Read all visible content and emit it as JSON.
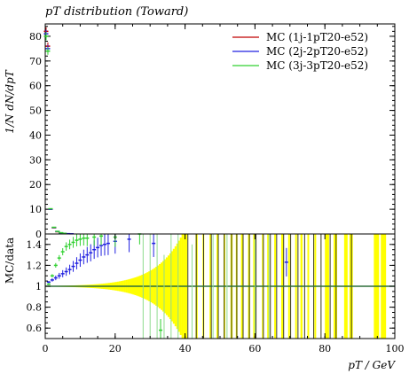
{
  "chart_data": {
    "type": "line",
    "title": "pT distribution (Toward)",
    "xlabel": "pT / GeV",
    "ylabel": "1/N dN/dpT",
    "ratio_ylabel": "MC/data",
    "xlim": [
      0,
      100
    ],
    "ylim": [
      0,
      85
    ],
    "ratio_ylim": [
      0.5,
      1.5
    ],
    "x_ticks": [
      "0",
      "20",
      "40",
      "60",
      "80",
      "100"
    ],
    "y_ticks": [
      "0",
      "10",
      "20",
      "30",
      "40",
      "50",
      "60",
      "70",
      "80"
    ],
    "ratio_ticks": [
      "0.6",
      "0.8",
      "1",
      "1.2",
      "1.4"
    ],
    "legend_position": "top-right",
    "colors": {
      "s1": "#c00000",
      "s2": "#2020e0",
      "s3": "#30d030",
      "band": "#ffff00",
      "ref": "#2d6e3a"
    },
    "legend": [
      {
        "name": "MC (1j-1pT20-e52)",
        "color": "#c00000"
      },
      {
        "name": "MC (2j-2pT20-e52)",
        "color": "#2020e0"
      },
      {
        "name": "MC (3j-3pT20-e52)",
        "color": "#30d030"
      }
    ],
    "series": [
      {
        "name": "MC (1j-1pT20-e52)",
        "x": [
          0.25,
          0.75,
          1.5,
          2.5,
          3.5,
          4.5
        ],
        "y": [
          82,
          76,
          10,
          2.5,
          0.9,
          0.4
        ]
      },
      {
        "name": "MC (2j-2pT20-e52)",
        "x": [
          0.25,
          0.75,
          1.5,
          2.5,
          3.5,
          4.5,
          5.5,
          6.5,
          7.5
        ],
        "y": [
          81,
          75,
          10,
          2.6,
          1.0,
          0.45,
          0.22,
          0.12,
          0.07
        ]
      },
      {
        "name": "MC (3j-3pT20-e52)",
        "x": [
          0.25,
          0.75,
          1.5,
          2.5,
          3.5,
          4.5,
          5.5
        ],
        "y": [
          80,
          74,
          10.2,
          2.7,
          1.05,
          0.5,
          0.25
        ]
      }
    ],
    "ratio_series": [
      {
        "name": "MC (2j-2pT20-e52)",
        "x": [
          1,
          2,
          3,
          4,
          5,
          6,
          7,
          8,
          9,
          10,
          11,
          12,
          13,
          14,
          15,
          16,
          17,
          18,
          20,
          24,
          31,
          69
        ],
        "y": [
          1.04,
          1.06,
          1.08,
          1.1,
          1.12,
          1.14,
          1.16,
          1.19,
          1.22,
          1.25,
          1.28,
          1.3,
          1.32,
          1.35,
          1.37,
          1.39,
          1.4,
          1.41,
          1.43,
          1.45,
          1.41,
          1.23
        ]
      },
      {
        "name": "MC (3j-3pT20-e52)",
        "x": [
          1,
          2,
          3,
          4,
          5,
          6,
          7,
          8,
          9,
          10,
          11,
          12,
          14,
          16,
          20,
          27,
          33
        ],
        "y": [
          1.02,
          1.1,
          1.2,
          1.27,
          1.33,
          1.38,
          1.4,
          1.42,
          1.44,
          1.45,
          1.46,
          1.46,
          1.47,
          1.48,
          1.47,
          1.5,
          0.58
        ]
      }
    ]
  }
}
